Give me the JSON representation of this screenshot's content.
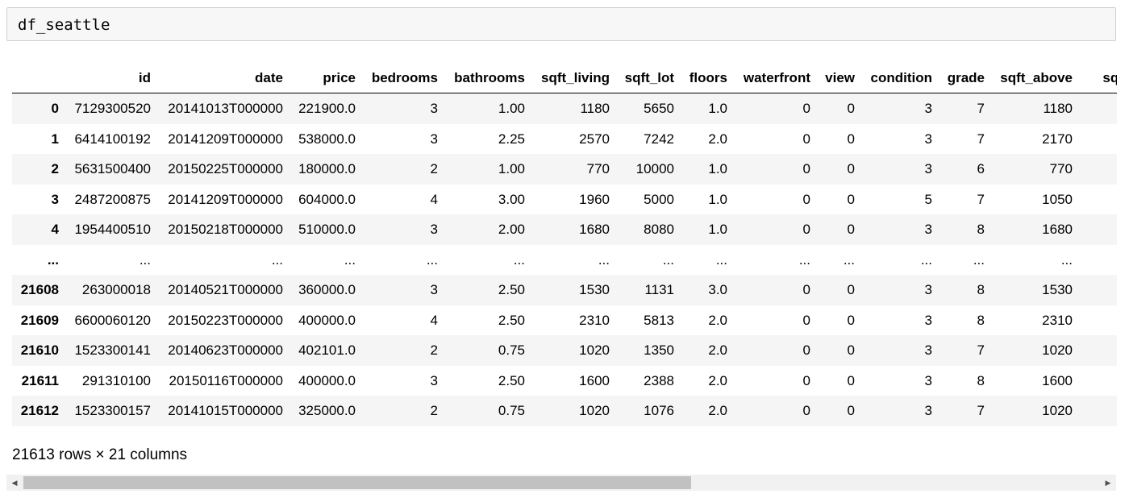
{
  "input": {
    "code": "df_seattle"
  },
  "table": {
    "columns": [
      "",
      "id",
      "date",
      "price",
      "bedrooms",
      "bathrooms",
      "sqft_living",
      "sqft_lot",
      "floors",
      "waterfront",
      "view",
      "condition",
      "grade",
      "sqft_above",
      "sqft_"
    ],
    "rows": [
      [
        "0",
        "7129300520",
        "20141013T000000",
        "221900.0",
        "3",
        "1.00",
        "1180",
        "5650",
        "1.0",
        "0",
        "0",
        "3",
        "7",
        "1180",
        ""
      ],
      [
        "1",
        "6414100192",
        "20141209T000000",
        "538000.0",
        "3",
        "2.25",
        "2570",
        "7242",
        "2.0",
        "0",
        "0",
        "3",
        "7",
        "2170",
        ""
      ],
      [
        "2",
        "5631500400",
        "20150225T000000",
        "180000.0",
        "2",
        "1.00",
        "770",
        "10000",
        "1.0",
        "0",
        "0",
        "3",
        "6",
        "770",
        ""
      ],
      [
        "3",
        "2487200875",
        "20141209T000000",
        "604000.0",
        "4",
        "3.00",
        "1960",
        "5000",
        "1.0",
        "0",
        "0",
        "5",
        "7",
        "1050",
        ""
      ],
      [
        "4",
        "1954400510",
        "20150218T000000",
        "510000.0",
        "3",
        "2.00",
        "1680",
        "8080",
        "1.0",
        "0",
        "0",
        "3",
        "8",
        "1680",
        ""
      ],
      [
        "...",
        "...",
        "...",
        "...",
        "...",
        "...",
        "...",
        "...",
        "...",
        "...",
        "...",
        "...",
        "...",
        "...",
        ""
      ],
      [
        "21608",
        "263000018",
        "20140521T000000",
        "360000.0",
        "3",
        "2.50",
        "1530",
        "1131",
        "3.0",
        "0",
        "0",
        "3",
        "8",
        "1530",
        ""
      ],
      [
        "21609",
        "6600060120",
        "20150223T000000",
        "400000.0",
        "4",
        "2.50",
        "2310",
        "5813",
        "2.0",
        "0",
        "0",
        "3",
        "8",
        "2310",
        ""
      ],
      [
        "21610",
        "1523300141",
        "20140623T000000",
        "402101.0",
        "2",
        "0.75",
        "1020",
        "1350",
        "2.0",
        "0",
        "0",
        "3",
        "7",
        "1020",
        ""
      ],
      [
        "21611",
        "291310100",
        "20150116T000000",
        "400000.0",
        "3",
        "2.50",
        "1600",
        "2388",
        "2.0",
        "0",
        "0",
        "3",
        "8",
        "1600",
        ""
      ],
      [
        "21612",
        "1523300157",
        "20141015T000000",
        "325000.0",
        "2",
        "0.75",
        "1020",
        "1076",
        "2.0",
        "0",
        "0",
        "3",
        "7",
        "1020",
        ""
      ]
    ]
  },
  "summary": "21613 rows × 21 columns",
  "scrollbar": {
    "left_icon": "triangle-left-icon",
    "right_icon": "triangle-right-icon",
    "thumb_fraction": 0.62
  }
}
